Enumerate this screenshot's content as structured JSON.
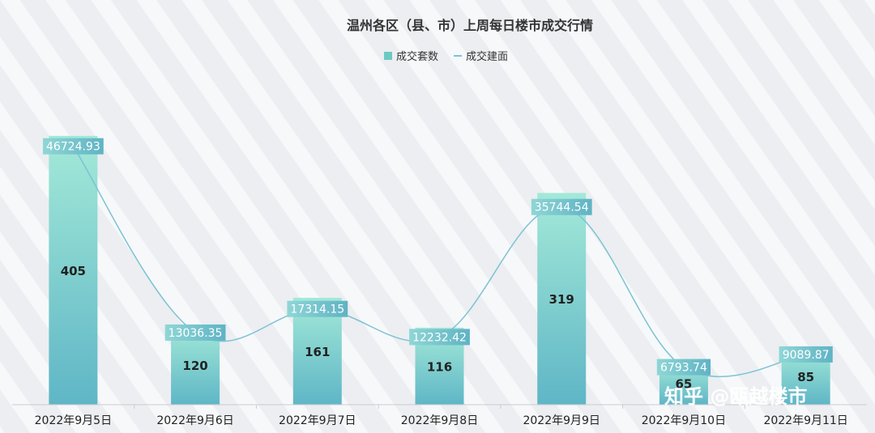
{
  "chart_data": {
    "type": "bar",
    "title": "温州各区（县、市）上周每日楼市成交行情",
    "categories": [
      "2022年9月5日",
      "2022年9月6日",
      "2022年9月7日",
      "2022年9月8日",
      "2022年9月9日",
      "2022年9月10日",
      "2022年9月11日"
    ],
    "series": [
      {
        "name": "成交套数",
        "type": "bar",
        "values": [
          405,
          120,
          161,
          116,
          319,
          65,
          85
        ],
        "color": "#8fe0d0"
      },
      {
        "name": "成交建面",
        "type": "line",
        "values": [
          46724.93,
          13036.35,
          17314.15,
          12232.42,
          35744.54,
          6793.74,
          9089.87
        ],
        "color": "#7cc3d4"
      }
    ],
    "legend_position": "top-center",
    "grid": false
  },
  "watermark": "知乎 @瓯越楼市",
  "colors": {
    "bar_top": "#a3e9d8",
    "bar_bottom": "#5fb6c6",
    "label_box": "#8fd6d6",
    "label_box_dark": "#5fb3c4",
    "line": "#7cc3d4"
  }
}
